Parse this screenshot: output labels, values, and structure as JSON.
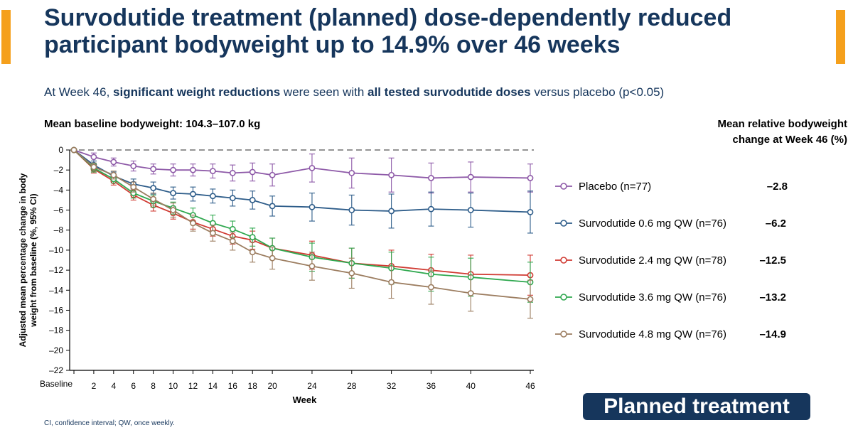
{
  "header": {
    "title": "Survodutide treatment (planned) dose-dependently reduced participant bodyweight up to 14.9% over 46 weeks",
    "subtitle": {
      "p1": "At Week 46, ",
      "b1": "significant weight reductions",
      "p2": " were seen with ",
      "b2": "all tested survodutide doses",
      "p3": " versus placebo (p<0.05)"
    }
  },
  "baseline_note": "Mean baseline bodyweight: 104.3–107.0 kg",
  "mean_header": {
    "line1": "Mean relative bodyweight",
    "line2": "change at Week 46 (%)"
  },
  "footnote": "CI, confidence interval; QW, once weekly.",
  "badge": "Planned treatment",
  "colors": {
    "accent_bar": "#f5a01c",
    "title": "#16365c"
  },
  "chart_data": {
    "type": "line",
    "title": "",
    "xlabel": "Week",
    "ylabel": "Adjusted mean percentage change in body weight from baseline (%, 95% CI)",
    "ylim": [
      -22,
      0
    ],
    "yticks": [
      0,
      -2,
      -4,
      -6,
      -8,
      -10,
      -12,
      -14,
      -16,
      -18,
      -20,
      -22
    ],
    "ytick_labels": [
      "0",
      "–2",
      "–4",
      "–6",
      "–8",
      "–10",
      "–12",
      "–14",
      "–16",
      "–18",
      "–20",
      "–22"
    ],
    "xlim": [
      -3,
      46
    ],
    "xticks": [
      0,
      2,
      4,
      6,
      8,
      10,
      12,
      14,
      16,
      18,
      20,
      24,
      28,
      32,
      36,
      40,
      46
    ],
    "xtick_labels": [
      "Baseline",
      "2",
      "4",
      "6",
      "8",
      "10",
      "12",
      "14",
      "16",
      "18",
      "20",
      "24",
      "28",
      "32",
      "36",
      "40",
      "46"
    ],
    "reference_line": 0,
    "legend_position": "right",
    "x": [
      0,
      2,
      4,
      6,
      8,
      10,
      12,
      14,
      16,
      18,
      20,
      24,
      28,
      32,
      36,
      40,
      46
    ],
    "series": [
      {
        "name": "Placebo (n=77)",
        "week46": "–2.8",
        "color": "#8e5aa8",
        "values": [
          0,
          -0.7,
          -1.2,
          -1.6,
          -1.9,
          -2.0,
          -2.0,
          -2.1,
          -2.3,
          -2.2,
          -2.5,
          -1.8,
          -2.3,
          -2.5,
          -2.8,
          -2.7,
          -2.8
        ],
        "ci": [
          0,
          0.4,
          0.4,
          0.5,
          0.5,
          0.6,
          0.6,
          0.7,
          0.8,
          0.9,
          1.1,
          1.4,
          1.5,
          1.7,
          1.5,
          1.5,
          1.4
        ]
      },
      {
        "name": "Survodutide 0.6 mg QW (n=76)",
        "week46": "–6.2",
        "color": "#2e5d8a",
        "values": [
          0,
          -1.5,
          -2.6,
          -3.4,
          -3.8,
          -4.3,
          -4.4,
          -4.6,
          -4.8,
          -5.0,
          -5.6,
          -5.7,
          -6.0,
          -6.1,
          -5.9,
          -6.0,
          -6.2
        ],
        "ci": [
          0,
          0.4,
          0.4,
          0.5,
          0.6,
          0.6,
          0.7,
          0.7,
          0.8,
          0.9,
          1.0,
          1.4,
          1.5,
          1.7,
          1.7,
          1.7,
          2.1
        ]
      },
      {
        "name": "Survodutide 2.4 mg QW (n=78)",
        "week46": "–12.5",
        "color": "#d03a32",
        "values": [
          0,
          -1.9,
          -3.1,
          -4.5,
          -5.5,
          -6.3,
          -7.2,
          -7.9,
          -8.6,
          -9.0,
          -9.8,
          -10.5,
          -11.3,
          -11.6,
          -12.0,
          -12.4,
          -12.5
        ],
        "ci": [
          0,
          0.4,
          0.4,
          0.5,
          0.6,
          0.6,
          0.7,
          0.7,
          0.8,
          0.9,
          1.0,
          1.4,
          1.5,
          1.6,
          1.6,
          1.9,
          2.0
        ]
      },
      {
        "name": "Survodutide 3.6 mg QW (n=76)",
        "week46": "–13.2",
        "color": "#2fa84f",
        "values": [
          0,
          -1.8,
          -2.9,
          -4.3,
          -5.1,
          -5.8,
          -6.5,
          -7.3,
          -7.9,
          -8.7,
          -9.8,
          -10.7,
          -11.3,
          -11.8,
          -12.4,
          -12.7,
          -13.2
        ],
        "ci": [
          0,
          0.4,
          0.4,
          0.5,
          0.6,
          0.6,
          0.7,
          0.8,
          0.8,
          0.9,
          1.0,
          1.4,
          1.5,
          1.6,
          1.7,
          1.9,
          2.0
        ]
      },
      {
        "name": "Survodutide 4.8 mg QW (n=76)",
        "week46": "–14.9",
        "color": "#9c7d60",
        "values": [
          0,
          -1.7,
          -2.5,
          -3.7,
          -4.9,
          -6.0,
          -7.3,
          -8.3,
          -9.1,
          -10.2,
          -10.8,
          -11.6,
          -12.3,
          -13.2,
          -13.7,
          -14.3,
          -14.9
        ],
        "ci": [
          0,
          0.4,
          0.4,
          0.5,
          0.6,
          0.7,
          0.8,
          0.8,
          0.9,
          1.0,
          1.1,
          1.4,
          1.5,
          1.6,
          1.7,
          1.8,
          1.9
        ]
      }
    ]
  }
}
